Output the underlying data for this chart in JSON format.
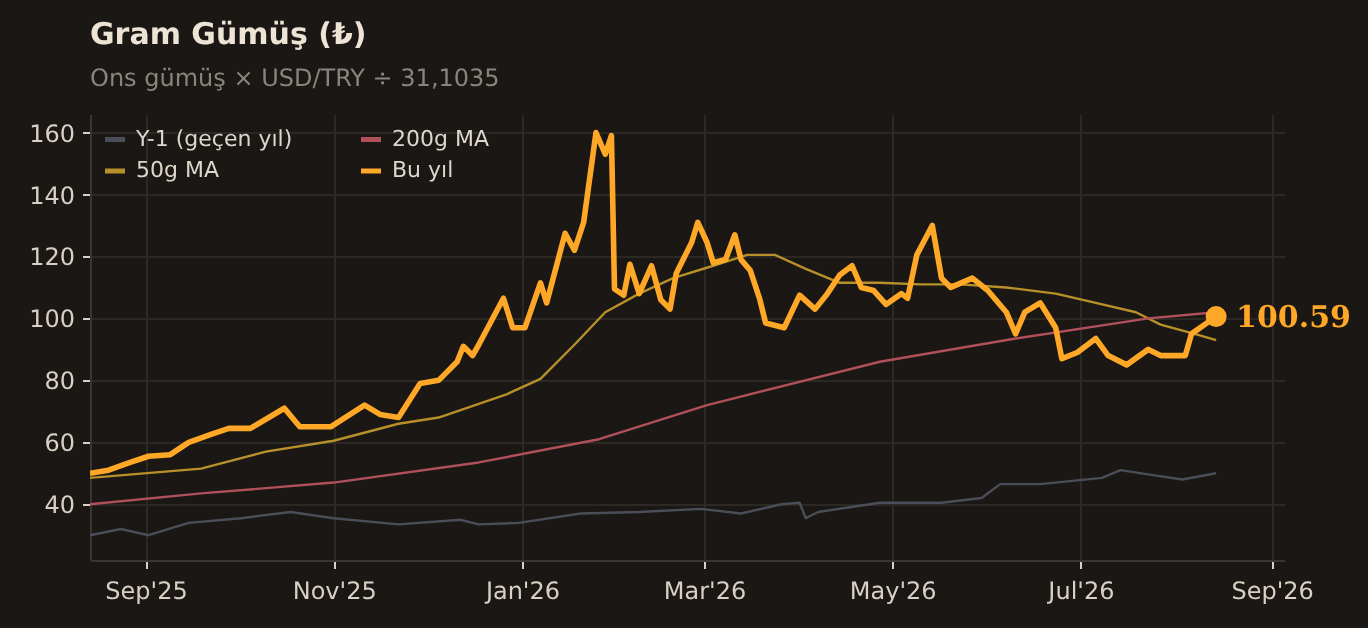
{
  "chart_data": {
    "type": "line",
    "title": "Gram Gümüş (₺)",
    "subtitle": "Ons gümüş × USD/TRY ÷ 31,1035",
    "xlim": [
      "2025-08-14",
      "2026-09-05"
    ],
    "xticks": [
      {
        "value": "2025-09-01",
        "label": "Sep'25"
      },
      {
        "value": "2025-11-01",
        "label": "Nov'25"
      },
      {
        "value": "2026-01-01",
        "label": "Jan'26"
      },
      {
        "value": "2026-03-01",
        "label": "Mar'26"
      },
      {
        "value": "2026-05-01",
        "label": "May'26"
      },
      {
        "value": "2026-07-01",
        "label": "Jul'26"
      },
      {
        "value": "2026-09-01",
        "label": "Sep'26"
      }
    ],
    "ylim": [
      22,
      166
    ],
    "yticks": [
      40,
      60,
      80,
      100,
      120,
      140,
      160
    ],
    "grid": true,
    "legend": "top left",
    "series": [
      {
        "name": "Y-1 (geçen yıl)",
        "color": "#4a4e58",
        "x": [
          "2025-08-14",
          "2025-08-24",
          "2025-09-02",
          "2025-09-15",
          "2025-10-02",
          "2025-10-18",
          "2025-11-01",
          "2025-11-22",
          "2025-12-12",
          "2025-12-18",
          "2025-12-31",
          "2026-01-20",
          "2026-02-08",
          "2026-02-28",
          "2026-03-13",
          "2026-03-26",
          "2026-04-01",
          "2026-04-03",
          "2026-04-07",
          "2026-04-27",
          "2026-05-17",
          "2026-05-30",
          "2026-06-05",
          "2026-06-18",
          "2026-07-08",
          "2026-07-14",
          "2026-07-24",
          "2026-08-03",
          "2026-08-14"
        ],
        "values": [
          30,
          32,
          30,
          34,
          35.5,
          37.5,
          35.5,
          33.5,
          35,
          33.5,
          34,
          37,
          37.5,
          38.5,
          37,
          40,
          40.5,
          35.5,
          37.5,
          40.5,
          40.5,
          42,
          46.5,
          46.5,
          48.5,
          51,
          49.5,
          48,
          50
        ]
      },
      {
        "name": "50g MA",
        "color": "#b8902a",
        "x": [
          "2025-08-14",
          "2025-09-19",
          "2025-10-10",
          "2025-11-01",
          "2025-11-22",
          "2025-12-05",
          "2025-12-27",
          "2026-01-07",
          "2026-01-18",
          "2026-01-28",
          "2026-02-08",
          "2026-02-19",
          "2026-03-04",
          "2026-03-15",
          "2026-03-24",
          "2026-04-03",
          "2026-04-14",
          "2026-04-27",
          "2026-05-10",
          "2026-05-23",
          "2026-06-07",
          "2026-06-23",
          "2026-07-06",
          "2026-07-19",
          "2026-07-27",
          "2026-08-07",
          "2026-08-14"
        ],
        "values": [
          48.5,
          51.5,
          57,
          60.5,
          66,
          68,
          75.5,
          80.5,
          91.5,
          102,
          108,
          113,
          117,
          120.5,
          120.5,
          116,
          111.5,
          111.5,
          111,
          111,
          110,
          108,
          105,
          102,
          98,
          95,
          93
        ]
      },
      {
        "name": "200g MA",
        "color": "#b0505a",
        "x": [
          "2025-08-14",
          "2025-09-19",
          "2025-11-01",
          "2025-12-18",
          "2026-01-26",
          "2026-03-02",
          "2026-04-27",
          "2026-06-10",
          "2026-07-23",
          "2026-08-14"
        ],
        "values": [
          40,
          43.5,
          47,
          53.5,
          61,
          72,
          86,
          93.5,
          100,
          102
        ]
      },
      {
        "name": "Bu yıl",
        "color": "#ffa726",
        "x": [
          "2025-08-14",
          "2025-08-20",
          "2025-08-27",
          "2025-09-02",
          "2025-09-09",
          "2025-09-15",
          "2025-09-22",
          "2025-09-28",
          "2025-10-05",
          "2025-10-16",
          "2025-10-21",
          "2025-10-31",
          "2025-11-11",
          "2025-11-16",
          "2025-11-22",
          "2025-11-29",
          "2025-12-05",
          "2025-12-11",
          "2025-12-13",
          "2025-12-16",
          "2025-12-18",
          "2025-12-26",
          "2025-12-29",
          "2026-01-02",
          "2026-01-07",
          "2026-01-09",
          "2026-01-15",
          "2026-01-18",
          "2026-01-21",
          "2026-01-25",
          "2026-01-28",
          "2026-01-30",
          "2026-01-31",
          "2026-02-03",
          "2026-02-05",
          "2026-02-08",
          "2026-02-12",
          "2026-02-15",
          "2026-02-18",
          "2026-02-20",
          "2026-02-25",
          "2026-02-27",
          "2026-03-02",
          "2026-03-04",
          "2026-03-08",
          "2026-03-11",
          "2026-03-13",
          "2026-03-16",
          "2026-03-19",
          "2026-03-21",
          "2026-03-27",
          "2026-04-01",
          "2026-04-06",
          "2026-04-10",
          "2026-04-14",
          "2026-04-18",
          "2026-04-21",
          "2026-04-25",
          "2026-04-29",
          "2026-05-04",
          "2026-05-06",
          "2026-05-09",
          "2026-05-14",
          "2026-05-17",
          "2026-05-20",
          "2026-05-27",
          "2026-06-01",
          "2026-06-07",
          "2026-06-10",
          "2026-06-13",
          "2026-06-18",
          "2026-06-23",
          "2026-06-25",
          "2026-06-30",
          "2026-07-06",
          "2026-07-10",
          "2026-07-16",
          "2026-07-23",
          "2026-07-27",
          "2026-08-04",
          "2026-08-06",
          "2026-08-11",
          "2026-08-14"
        ],
        "values": [
          50,
          51,
          53.5,
          55.5,
          56,
          60,
          62.5,
          64.5,
          64.5,
          71,
          65,
          65,
          72,
          69,
          68,
          79,
          80,
          86,
          91,
          88,
          91.5,
          106.5,
          97,
          97,
          111.5,
          105,
          127.5,
          122,
          131,
          160,
          153,
          159,
          109.5,
          107.5,
          117.5,
          108,
          117,
          106,
          103,
          114.5,
          124.5,
          131,
          124.5,
          118,
          119,
          127,
          119,
          115.5,
          106.5,
          98.5,
          97,
          107.5,
          103,
          108,
          114,
          117,
          110,
          109,
          104.5,
          108,
          106.5,
          120.5,
          130,
          113,
          110,
          113,
          109,
          102,
          95,
          102,
          105,
          97,
          87,
          89,
          93.5,
          88,
          85,
          90,
          88,
          88,
          95,
          98.5,
          100.59
        ]
      }
    ],
    "annotations": [
      {
        "text": "100.59",
        "x": "2026-08-14",
        "y": 100.59
      }
    ]
  }
}
